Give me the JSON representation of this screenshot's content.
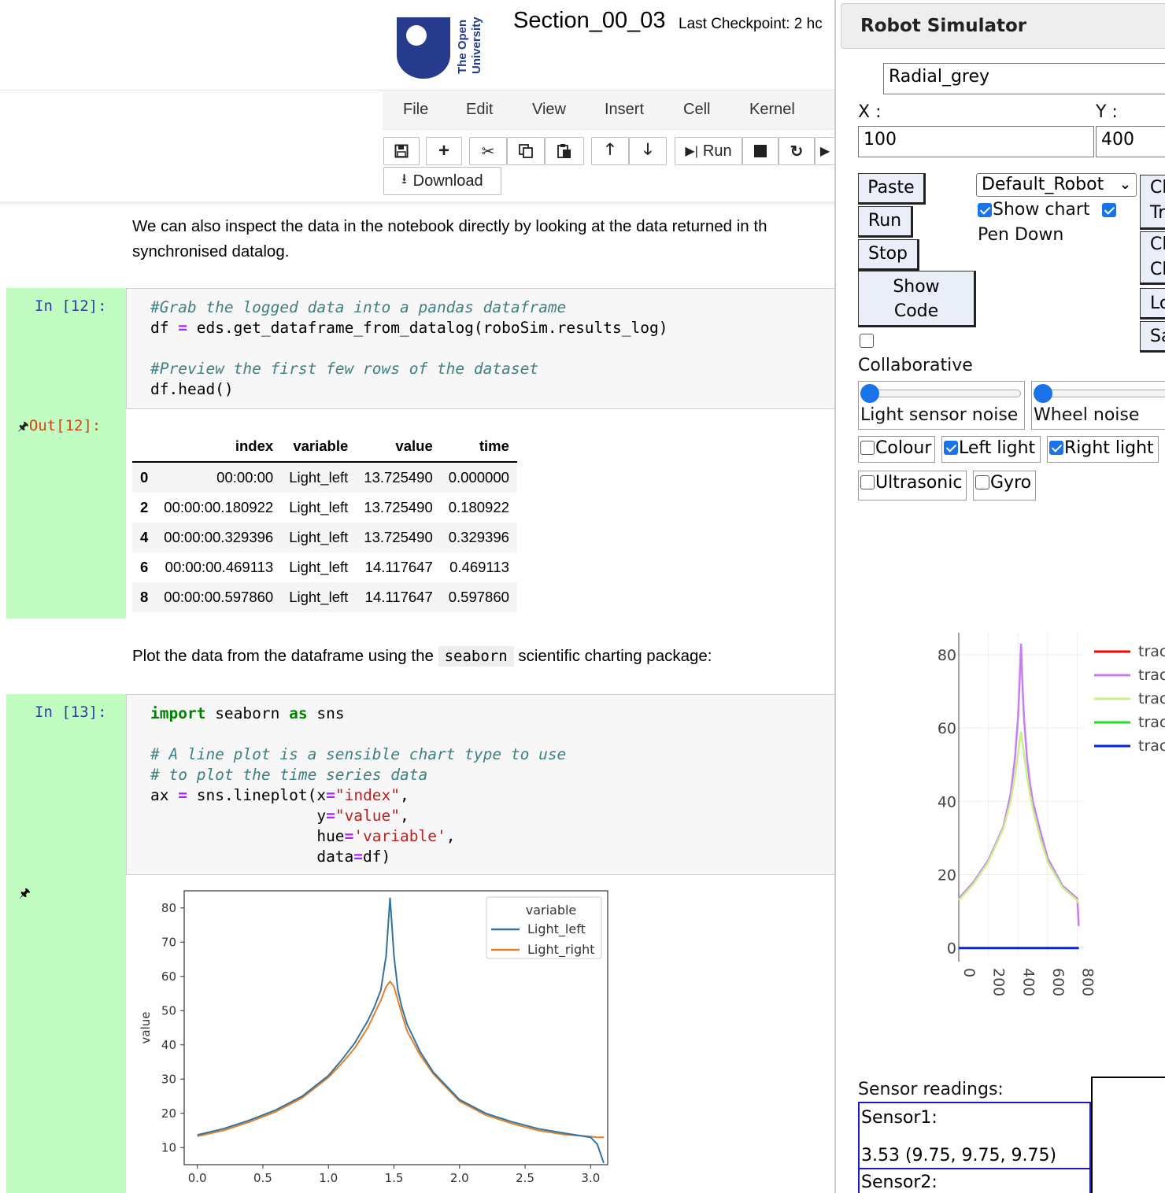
{
  "header": {
    "logo_text_line1": "The Open",
    "logo_text_line2": "University",
    "notebook_title": "Section_00_03",
    "checkpoint": "Last Checkpoint: 2 hc",
    "menu": [
      "File",
      "Edit",
      "View",
      "Insert",
      "Cell",
      "Kernel"
    ],
    "toolbar": {
      "run_label": "Run",
      "download_label": "Download"
    }
  },
  "notebook": {
    "md1_line1": "We can also inspect the data in the notebook directly by looking at the data returned in th",
    "md1_line2": "synchronised datalog.",
    "cell12_prompt": "In [12]:",
    "cell12_code": {
      "l1": "#Grab the logged data into a pandas dataframe",
      "l2_a": "df ",
      "l2_op": "=",
      "l2_b": " eds.get_dataframe_from_datalog(roboSim.results_log)",
      "l4": "#Preview the first few rows of the dataset",
      "l5": "df.head()"
    },
    "out12_prompt": "Out[12]:",
    "table": {
      "columns": [
        "",
        "index",
        "variable",
        "value",
        "time"
      ],
      "rows": [
        [
          "0",
          "00:00:00",
          "Light_left",
          "13.725490",
          "0.000000"
        ],
        [
          "2",
          "00:00:00.180922",
          "Light_left",
          "13.725490",
          "0.180922"
        ],
        [
          "4",
          "00:00:00.329396",
          "Light_left",
          "13.725490",
          "0.329396"
        ],
        [
          "6",
          "00:00:00.469113",
          "Light_left",
          "14.117647",
          "0.469113"
        ],
        [
          "8",
          "00:00:00.597860",
          "Light_left",
          "14.117647",
          "0.597860"
        ]
      ]
    },
    "md2_before": "Plot the data from the dataframe using the ",
    "md2_code": "seaborn",
    "md2_after": " scientific charting package:",
    "cell13_prompt": "In [13]:",
    "cell13_code": {
      "l1_kw1": "import",
      "l1_mid": " seaborn ",
      "l1_kw2": "as",
      "l1_end": " sns",
      "l3": "# A line plot is a sensible chart type to use",
      "l4": "# to plot the time series data",
      "l5_a": "ax ",
      "l5_op": "=",
      "l5_b": " sns.lineplot(x",
      "l5_op2": "=",
      "l5_str": "\"index\"",
      "l5_c": ",",
      "l6_a": "y",
      "l6_op": "=",
      "l6_str": "\"value\"",
      "l6_c": ",",
      "l7_a": "hue",
      "l7_op": "=",
      "l7_str": "'variable'",
      "l7_c": ",",
      "l8_a": "data",
      "l8_op": "=",
      "l8_b": "df)"
    }
  },
  "simulator": {
    "title": "Robot Simulator",
    "background_select": "Radial_grey",
    "x_label": "X :",
    "y_label": "Y :",
    "x_value": "100",
    "y_value": "400",
    "paste_label": "Paste",
    "run_label": "Run",
    "stop_label": "Stop",
    "show_code_line1": "Show",
    "show_code_line2": "Code",
    "robot_select": "Default_Robot",
    "show_chart_label": "Show chart",
    "show_chart_checked": true,
    "pen_down_checked": true,
    "pen_down_label": "Pen Down",
    "right_btns": [
      "Cl",
      "Tr",
      "Cl",
      "Ch",
      "Lo",
      "Sa"
    ],
    "collaborative_label": "Collaborative",
    "collaborative_checked": false,
    "light_noise_label": "Light sensor noise",
    "wheel_noise_label": "Wheel noise",
    "light_noise_value": 0,
    "wheel_noise_value": 0,
    "sensors": [
      {
        "label": "Colour",
        "checked": false
      },
      {
        "label": "Left light",
        "checked": true
      },
      {
        "label": "Right light",
        "checked": true
      },
      {
        "label": "Ultrasonic",
        "checked": false
      },
      {
        "label": "Gyro",
        "checked": false
      }
    ],
    "readings_label": "Sensor readings:",
    "sensor1_label": "Sensor1:",
    "sensor1_value": "3.53 (9.75, 9.75, 9.75)",
    "sensor2_label": "Sensor2:"
  },
  "colors": {
    "prompt_bg": "#c1fcc1",
    "in_prompt": "#303f9f",
    "out_prompt": "#d84315",
    "sim_accent": "#1a73e8"
  },
  "chart_data": [
    {
      "type": "line",
      "ylabel": "value",
      "xlim": [
        -0.1,
        3.13
      ],
      "ylim": [
        5,
        85
      ],
      "xticks": [
        "0.0",
        "0.5",
        "1.0",
        "1.5",
        "2.0",
        "2.5",
        "3.0"
      ],
      "yticks": [
        "10",
        "20",
        "30",
        "40",
        "50",
        "60",
        "70",
        "80"
      ],
      "legend_title": "variable",
      "legend_position": "top-right",
      "x": [
        0.0,
        0.2,
        0.4,
        0.6,
        0.8,
        1.0,
        1.1,
        1.2,
        1.3,
        1.35,
        1.4,
        1.44,
        1.47,
        1.5,
        1.53,
        1.56,
        1.6,
        1.7,
        1.8,
        1.9,
        2.0,
        2.2,
        2.4,
        2.6,
        2.8,
        3.0,
        3.05,
        3.1
      ],
      "series": [
        {
          "name": "Light_left",
          "color": "#3274a1",
          "values": [
            13.7,
            15.5,
            18,
            21,
            25,
            31,
            35.5,
            40.5,
            47,
            51,
            56,
            66,
            83,
            66,
            56,
            51,
            46,
            38,
            32,
            28,
            24,
            20,
            17.5,
            15.5,
            14.2,
            13,
            11,
            5.5
          ]
        },
        {
          "name": "Light_right",
          "color": "#e1812c",
          "values": [
            13.3,
            15,
            17.5,
            20.5,
            24.5,
            30.5,
            34.5,
            39,
            45,
            49,
            53,
            57,
            58.5,
            57,
            53,
            49,
            44,
            37,
            31.5,
            27.5,
            23.5,
            19.5,
            17,
            15,
            13.8,
            13.2,
            13,
            13
          ]
        }
      ]
    },
    {
      "type": "line",
      "xlim": [
        0,
        850
      ],
      "ylim": [
        -2,
        86
      ],
      "xticks": [
        "0",
        "200",
        "400",
        "600",
        "800"
      ],
      "yticks": [
        "0",
        "20",
        "40",
        "60",
        "80"
      ],
      "legend_position": "top-right",
      "x": [
        0,
        100,
        200,
        300,
        350,
        380,
        400,
        410,
        420,
        430,
        440,
        460,
        480,
        500,
        550,
        600,
        700,
        800,
        805,
        810
      ],
      "series": [
        {
          "name": "trace",
          "color": "#ff0000",
          "values": [
            0,
            0,
            0,
            0,
            0,
            0,
            0,
            0,
            0,
            0,
            0,
            0,
            0,
            0,
            0,
            0,
            0,
            0,
            0,
            0
          ]
        },
        {
          "name": "trace",
          "color": "#c97ef0",
          "values": [
            13.5,
            18,
            24,
            33,
            42,
            52,
            63,
            72,
            83,
            72,
            63,
            52,
            45,
            40,
            32,
            24.5,
            17,
            13.5,
            10,
            6
          ]
        },
        {
          "name": "trace",
          "color": "#c9f08a",
          "values": [
            13,
            17.5,
            23.5,
            32.5,
            40,
            47,
            53,
            56,
            59,
            56,
            53,
            47,
            42,
            38,
            30,
            23.5,
            16.5,
            13,
            12.5,
            12.5
          ]
        },
        {
          "name": "trace",
          "color": "#22dd22",
          "values": [
            0,
            0,
            0,
            0,
            0,
            0,
            0,
            0,
            0,
            0,
            0,
            0,
            0,
            0,
            0,
            0,
            0,
            0,
            0,
            0
          ]
        },
        {
          "name": "trace",
          "color": "#0022ee",
          "values": [
            0,
            0,
            0,
            0,
            0,
            0,
            0,
            0,
            0,
            0,
            0,
            0,
            0,
            0,
            0,
            0,
            0,
            0,
            0,
            0
          ]
        }
      ]
    }
  ]
}
